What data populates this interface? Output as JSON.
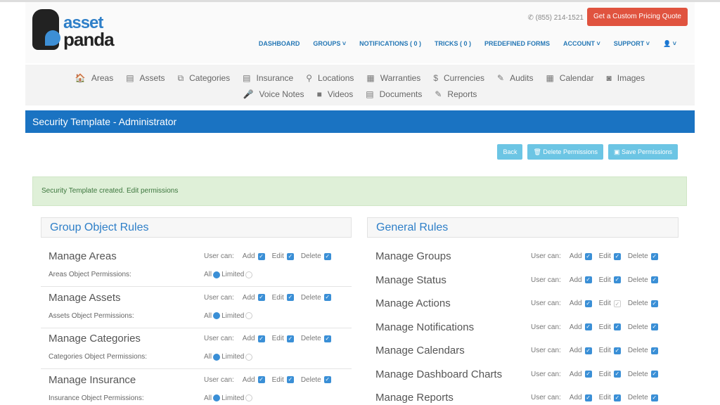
{
  "header": {
    "logo_top": "asset",
    "logo_bottom": "panda",
    "phone": "(855) 214-1521",
    "quote_button": "Get a Custom Pricing Quote",
    "nav": [
      "DASHBOARD",
      "GROUPS ˅",
      "NOTIFICATIONS ( 0 )",
      "TRICKS ( 0 )",
      "PREDEFINED FORMS",
      "ACCOUNT ˅",
      "SUPPORT ˅",
      "👤 ˅"
    ]
  },
  "subnav": {
    "row1": [
      {
        "icon": "home-icon",
        "g": "🏠",
        "label": "Areas"
      },
      {
        "icon": "document-icon",
        "g": "▤",
        "label": "Assets"
      },
      {
        "icon": "copy-icon",
        "g": "⧉",
        "label": "Categories"
      },
      {
        "icon": "document-icon",
        "g": "▤",
        "label": "Insurance"
      },
      {
        "icon": "map-marker-icon",
        "g": "⚲",
        "label": "Locations"
      },
      {
        "icon": "list-icon",
        "g": "▦",
        "label": "Warranties"
      },
      {
        "icon": "dollar-icon",
        "g": "$",
        "label": "Currencies"
      },
      {
        "icon": "edit-icon",
        "g": "✎",
        "label": "Audits"
      },
      {
        "icon": "calendar-icon",
        "g": "▦",
        "label": "Calendar"
      },
      {
        "icon": "camera-icon",
        "g": "◙",
        "label": "Images"
      }
    ],
    "row2": [
      {
        "icon": "microphone-icon",
        "g": "🎤",
        "label": "Voice Notes"
      },
      {
        "icon": "video-icon",
        "g": "■",
        "label": "Videos"
      },
      {
        "icon": "document-icon",
        "g": "▤",
        "label": "Documents"
      },
      {
        "icon": "edit-icon",
        "g": "✎",
        "label": "Reports"
      }
    ]
  },
  "title": "Security Template - Administrator",
  "buttons": {
    "back": "Back",
    "delete": "Delete Permissions",
    "save": "Save Permissions"
  },
  "alert": "Security Template created. Edit permissions",
  "labels": {
    "user_can": "User can:",
    "add": "Add",
    "edit": "Edit",
    "delete": "Delete",
    "all": "All",
    "limited": "Limited"
  },
  "group_object_rules": {
    "heading": "Group Object Rules",
    "items": [
      {
        "name": "Manage Areas",
        "sub": "Areas Object Permissions:",
        "add": true,
        "edit": true,
        "delete": true,
        "scope": "All"
      },
      {
        "name": "Manage Assets",
        "sub": "Assets Object Permissions:",
        "add": true,
        "edit": true,
        "delete": true,
        "scope": "All"
      },
      {
        "name": "Manage Categories",
        "sub": "Categories Object Permissions:",
        "add": true,
        "edit": true,
        "delete": true,
        "scope": "All"
      },
      {
        "name": "Manage Insurance",
        "sub": "Insurance Object Permissions:",
        "add": true,
        "edit": true,
        "delete": true,
        "scope": "All"
      }
    ]
  },
  "general_rules": {
    "heading": "General Rules",
    "items": [
      {
        "name": "Manage Groups",
        "add": true,
        "edit": true,
        "delete": true
      },
      {
        "name": "Manage Status",
        "add": true,
        "edit": true,
        "delete": true
      },
      {
        "name": "Manage Actions",
        "add": true,
        "edit": false,
        "delete": true
      },
      {
        "name": "Manage Notifications",
        "add": true,
        "edit": true,
        "delete": true
      },
      {
        "name": "Manage Calendars",
        "add": true,
        "edit": true,
        "delete": true
      },
      {
        "name": "Manage Dashboard Charts",
        "add": true,
        "edit": true,
        "delete": true
      },
      {
        "name": "Manage Reports",
        "add": true,
        "edit": true,
        "delete": true
      }
    ]
  },
  "colors": {
    "primary": "#1a73c2",
    "quote": "#e0533f",
    "info_button": "#6cc5e4",
    "alert_bg": "#dff0d8"
  }
}
